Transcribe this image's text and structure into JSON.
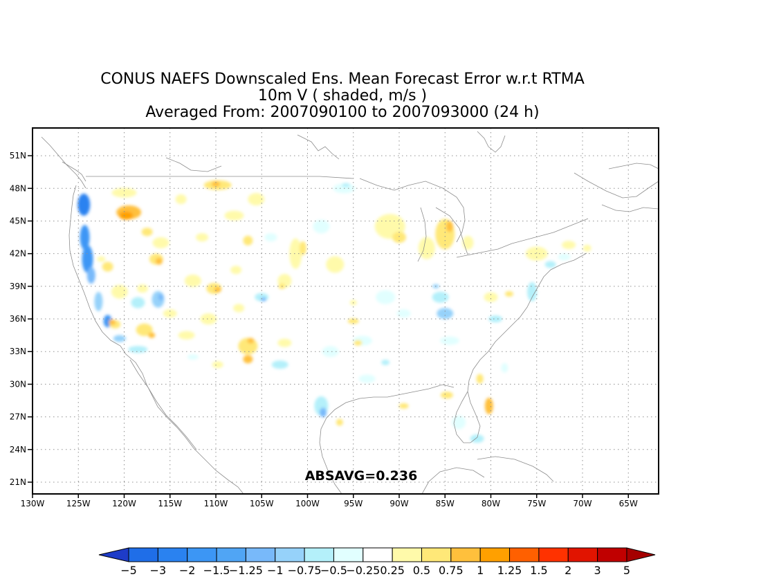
{
  "title": {
    "line1": "CONUS NAEFS Downscaled Ens. Mean Forecast Error w.r.t RTMA",
    "line2": "10m V ( shaded, m/s )",
    "line3": "Averaged From: 2007090100 to 2007093000 (24 h)"
  },
  "map": {
    "lat_ticks": [
      "51N",
      "48N",
      "45N",
      "42N",
      "39N",
      "36N",
      "33N",
      "30N",
      "27N",
      "24N",
      "21N"
    ],
    "lon_ticks": [
      "130W",
      "125W",
      "120W",
      "115W",
      "110W",
      "105W",
      "100W",
      "95W",
      "90W",
      "85W",
      "80W",
      "75W",
      "70W",
      "65W"
    ],
    "statistic": "ABSAVG=0.236",
    "grid_lines": true
  },
  "colorbar": {
    "labels": [
      "-5",
      "-3",
      "-2",
      "-1.5",
      "-1.25",
      "-1",
      "-0.75",
      "-0.5",
      "-0.25",
      "0.25",
      "0.5",
      "0.75",
      "1",
      "1.25",
      "1.5",
      "2",
      "3",
      "5"
    ],
    "colors": [
      "#1e3cc8",
      "#1f6ee8",
      "#2a82f0",
      "#3c96f5",
      "#50a5f5",
      "#78b9fa",
      "#96d2fa",
      "#b4f0fa",
      "#e1ffff",
      "#ffffff",
      "#fffaaa",
      "#ffe878",
      "#ffc03c",
      "#ffa000",
      "#ff6000",
      "#ff3200",
      "#e11400",
      "#c00000",
      "#a50000"
    ]
  },
  "anomalies": [
    {
      "lon": -124.4,
      "lat": 46.5,
      "rx": 9,
      "ry": 16,
      "level": -2
    },
    {
      "lon": -124.3,
      "lat": 43.5,
      "rx": 7,
      "ry": 18,
      "level": -1.5
    },
    {
      "lon": -124.0,
      "lat": 41.5,
      "rx": 8,
      "ry": 20,
      "level": -1.5
    },
    {
      "lon": -123.6,
      "lat": 40.0,
      "rx": 6,
      "ry": 12,
      "level": -1
    },
    {
      "lon": -122.8,
      "lat": 37.6,
      "rx": 6,
      "ry": 14,
      "level": -0.75
    },
    {
      "lon": -121.8,
      "lat": 35.8,
      "rx": 6,
      "ry": 9,
      "level": -1.5
    },
    {
      "lon": -120.5,
      "lat": 34.2,
      "rx": 9,
      "ry": 5,
      "level": -0.75
    },
    {
      "lon": -118.5,
      "lat": 33.2,
      "rx": 14,
      "ry": 5,
      "level": -0.5
    },
    {
      "lon": -119.5,
      "lat": 45.8,
      "rx": 18,
      "ry": 10,
      "level": 0.75
    },
    {
      "lon": -119.8,
      "lat": 45.5,
      "rx": 10,
      "ry": 6,
      "level": 1
    },
    {
      "lon": -120.0,
      "lat": 47.6,
      "rx": 18,
      "ry": 7,
      "level": 0.25
    },
    {
      "lon": -109.8,
      "lat": 48.3,
      "rx": 20,
      "ry": 7,
      "level": 0.5
    },
    {
      "lon": -110.0,
      "lat": 48.4,
      "rx": 6,
      "ry": 4,
      "level": 0.75
    },
    {
      "lon": -105.6,
      "lat": 47.0,
      "rx": 12,
      "ry": 9,
      "level": 0.25
    },
    {
      "lon": -108.0,
      "lat": 45.5,
      "rx": 14,
      "ry": 7,
      "level": 0.25
    },
    {
      "lon": -113.8,
      "lat": 47.0,
      "rx": 8,
      "ry": 7,
      "level": 0.25
    },
    {
      "lon": -116.0,
      "lat": 43.0,
      "rx": 12,
      "ry": 8,
      "level": 0.25
    },
    {
      "lon": -117.5,
      "lat": 44.0,
      "rx": 8,
      "ry": 6,
      "level": 0.5
    },
    {
      "lon": -116.5,
      "lat": 41.5,
      "rx": 10,
      "ry": 8,
      "level": 0.5
    },
    {
      "lon": -116.2,
      "lat": 41.3,
      "rx": 5,
      "ry": 5,
      "level": 0.75
    },
    {
      "lon": -121.8,
      "lat": 40.8,
      "rx": 8,
      "ry": 7,
      "level": 0.5
    },
    {
      "lon": -122.5,
      "lat": 41.5,
      "rx": 6,
      "ry": 4,
      "level": 0.25
    },
    {
      "lon": -120.5,
      "lat": 38.5,
      "rx": 12,
      "ry": 10,
      "level": 0.25
    },
    {
      "lon": -118.0,
      "lat": 38.8,
      "rx": 8,
      "ry": 6,
      "level": 0.25
    },
    {
      "lon": -118.5,
      "lat": 37.5,
      "rx": 10,
      "ry": 8,
      "level": -0.5
    },
    {
      "lon": -116.3,
      "lat": 37.8,
      "rx": 9,
      "ry": 12,
      "level": -0.75
    },
    {
      "lon": -116.0,
      "lat": 38.0,
      "rx": 4,
      "ry": 5,
      "level": -1
    },
    {
      "lon": -121.0,
      "lat": 35.5,
      "rx": 8,
      "ry": 6,
      "level": 0.5
    },
    {
      "lon": -121.3,
      "lat": 35.7,
      "rx": 5,
      "ry": 4,
      "level": 0.75
    },
    {
      "lon": -117.8,
      "lat": 35.0,
      "rx": 12,
      "ry": 9,
      "level": 0.5
    },
    {
      "lon": -117.0,
      "lat": 34.5,
      "rx": 5,
      "ry": 4,
      "level": 0.75
    },
    {
      "lon": -115.0,
      "lat": 36.5,
      "rx": 10,
      "ry": 6,
      "level": 0.25
    },
    {
      "lon": -112.5,
      "lat": 39.5,
      "rx": 12,
      "ry": 9,
      "level": 0.25
    },
    {
      "lon": -110.2,
      "lat": 38.8,
      "rx": 11,
      "ry": 8,
      "level": 0.5
    },
    {
      "lon": -109.8,
      "lat": 38.7,
      "rx": 5,
      "ry": 4,
      "level": 0.75
    },
    {
      "lon": -107.8,
      "lat": 40.5,
      "rx": 8,
      "ry": 6,
      "level": 0.25
    },
    {
      "lon": -106.5,
      "lat": 43.2,
      "rx": 7,
      "ry": 7,
      "level": 0.5
    },
    {
      "lon": -111.5,
      "lat": 43.5,
      "rx": 9,
      "ry": 6,
      "level": 0.25
    },
    {
      "lon": -104.0,
      "lat": 43.5,
      "rx": 9,
      "ry": 6,
      "level": -0.25
    },
    {
      "lon": -105.0,
      "lat": 38.0,
      "rx": 10,
      "ry": 6,
      "level": -0.5
    },
    {
      "lon": -104.8,
      "lat": 37.8,
      "rx": 4,
      "ry": 3,
      "level": -1
    },
    {
      "lon": -107.5,
      "lat": 37.0,
      "rx": 8,
      "ry": 6,
      "level": 0.25
    },
    {
      "lon": -110.8,
      "lat": 36.0,
      "rx": 12,
      "ry": 8,
      "level": 0.25
    },
    {
      "lon": -113.2,
      "lat": 34.5,
      "rx": 12,
      "ry": 6,
      "level": 0.25
    },
    {
      "lon": -106.5,
      "lat": 33.5,
      "rx": 14,
      "ry": 12,
      "level": 0.5
    },
    {
      "lon": -106.5,
      "lat": 32.3,
      "rx": 7,
      "ry": 6,
      "level": 0.75
    },
    {
      "lon": -106.2,
      "lat": 34.0,
      "rx": 5,
      "ry": 4,
      "level": 0.75
    },
    {
      "lon": -102.5,
      "lat": 33.8,
      "rx": 10,
      "ry": 6,
      "level": 0.25
    },
    {
      "lon": -109.8,
      "lat": 31.8,
      "rx": 8,
      "ry": 5,
      "level": 0.25
    },
    {
      "lon": -103.0,
      "lat": 31.8,
      "rx": 12,
      "ry": 6,
      "level": -0.5
    },
    {
      "lon": -112.5,
      "lat": 32.5,
      "rx": 8,
      "ry": 4,
      "level": -0.25
    },
    {
      "lon": -101.3,
      "lat": 42.0,
      "rx": 9,
      "ry": 22,
      "level": 0.25
    },
    {
      "lon": -100.5,
      "lat": 42.5,
      "rx": 5,
      "ry": 10,
      "level": 0.5
    },
    {
      "lon": -102.5,
      "lat": 39.5,
      "rx": 10,
      "ry": 10,
      "level": 0.25
    },
    {
      "lon": -102.8,
      "lat": 39.0,
      "rx": 5,
      "ry": 4,
      "level": 0.5
    },
    {
      "lon": -97.0,
      "lat": 41.0,
      "rx": 13,
      "ry": 12,
      "level": 0.25
    },
    {
      "lon": -96.0,
      "lat": 48.0,
      "rx": 16,
      "ry": 7,
      "level": -0.25
    },
    {
      "lon": -95.8,
      "lat": 48.3,
      "rx": 6,
      "ry": 3,
      "level": -0.5
    },
    {
      "lon": -98.5,
      "lat": 44.5,
      "rx": 12,
      "ry": 10,
      "level": -0.25
    },
    {
      "lon": -91.0,
      "lat": 44.5,
      "rx": 22,
      "ry": 18,
      "level": 0.25
    },
    {
      "lon": -90.0,
      "lat": 43.5,
      "rx": 10,
      "ry": 8,
      "level": 0.5
    },
    {
      "lon": -87.0,
      "lat": 42.5,
      "rx": 12,
      "ry": 16,
      "level": 0.25
    },
    {
      "lon": -85.0,
      "lat": 43.8,
      "rx": 14,
      "ry": 22,
      "level": 0.5
    },
    {
      "lon": -84.5,
      "lat": 44.5,
      "rx": 5,
      "ry": 8,
      "level": 0.75
    },
    {
      "lon": -82.5,
      "lat": 43.0,
      "rx": 8,
      "ry": 10,
      "level": 0.25
    },
    {
      "lon": -75.0,
      "lat": 42.0,
      "rx": 16,
      "ry": 10,
      "level": 0.25
    },
    {
      "lon": -71.5,
      "lat": 42.8,
      "rx": 10,
      "ry": 6,
      "level": 0.25
    },
    {
      "lon": -69.5,
      "lat": 42.5,
      "rx": 6,
      "ry": 5,
      "level": 0.25
    },
    {
      "lon": -80.0,
      "lat": 38.0,
      "rx": 10,
      "ry": 7,
      "level": 0.25
    },
    {
      "lon": -75.5,
      "lat": 38.5,
      "rx": 7,
      "ry": 14,
      "level": -0.5
    },
    {
      "lon": -73.5,
      "lat": 41.0,
      "rx": 8,
      "ry": 5,
      "level": -0.5
    },
    {
      "lon": -72.0,
      "lat": 41.7,
      "rx": 9,
      "ry": 5,
      "level": -0.25
    },
    {
      "lon": -91.5,
      "lat": 38.0,
      "rx": 14,
      "ry": 10,
      "level": -0.25
    },
    {
      "lon": -85.5,
      "lat": 38.0,
      "rx": 12,
      "ry": 8,
      "level": -0.5
    },
    {
      "lon": -86.0,
      "lat": 39.0,
      "rx": 5,
      "ry": 3,
      "level": -0.75
    },
    {
      "lon": -85.0,
      "lat": 36.5,
      "rx": 12,
      "ry": 8,
      "level": -0.75
    },
    {
      "lon": -79.5,
      "lat": 36.0,
      "rx": 10,
      "ry": 5,
      "level": -0.5
    },
    {
      "lon": -84.5,
      "lat": 34.0,
      "rx": 14,
      "ry": 6,
      "level": -0.25
    },
    {
      "lon": -89.5,
      "lat": 36.5,
      "rx": 10,
      "ry": 6,
      "level": -0.25
    },
    {
      "lon": -94.0,
      "lat": 34.0,
      "rx": 14,
      "ry": 7,
      "level": -0.25
    },
    {
      "lon": -97.5,
      "lat": 33.0,
      "rx": 12,
      "ry": 8,
      "level": -0.25
    },
    {
      "lon": -95.0,
      "lat": 35.8,
      "rx": 8,
      "ry": 4,
      "level": 0.5
    },
    {
      "lon": -94.5,
      "lat": 33.8,
      "rx": 6,
      "ry": 4,
      "level": 0.5
    },
    {
      "lon": -91.5,
      "lat": 32.0,
      "rx": 6,
      "ry": 4,
      "level": -0.5
    },
    {
      "lon": -93.5,
      "lat": 30.5,
      "rx": 12,
      "ry": 6,
      "level": -0.25
    },
    {
      "lon": -98.5,
      "lat": 28.0,
      "rx": 10,
      "ry": 14,
      "level": -0.5
    },
    {
      "lon": -98.3,
      "lat": 27.4,
      "rx": 5,
      "ry": 7,
      "level": -1
    },
    {
      "lon": -96.5,
      "lat": 26.5,
      "rx": 5,
      "ry": 5,
      "level": 0.5
    },
    {
      "lon": -89.5,
      "lat": 28.0,
      "rx": 7,
      "ry": 4,
      "level": 0.5
    },
    {
      "lon": -84.8,
      "lat": 29.0,
      "rx": 9,
      "ry": 5,
      "level": 0.5
    },
    {
      "lon": -80.2,
      "lat": 28.0,
      "rx": 6,
      "ry": 12,
      "level": 0.75
    },
    {
      "lon": -81.2,
      "lat": 30.5,
      "rx": 5,
      "ry": 7,
      "level": 0.5
    },
    {
      "lon": -83.5,
      "lat": 26.5,
      "rx": 10,
      "ry": 10,
      "level": -0.25
    },
    {
      "lon": -81.5,
      "lat": 25.0,
      "rx": 10,
      "ry": 6,
      "level": -0.5
    },
    {
      "lon": -78.5,
      "lat": 31.5,
      "rx": 5,
      "ry": 7,
      "level": -0.25
    },
    {
      "lon": -78.0,
      "lat": 38.3,
      "rx": 6,
      "ry": 4,
      "level": 0.5
    },
    {
      "lon": -95.0,
      "lat": 37.5,
      "rx": 5,
      "ry": 4,
      "level": 0.25
    }
  ]
}
